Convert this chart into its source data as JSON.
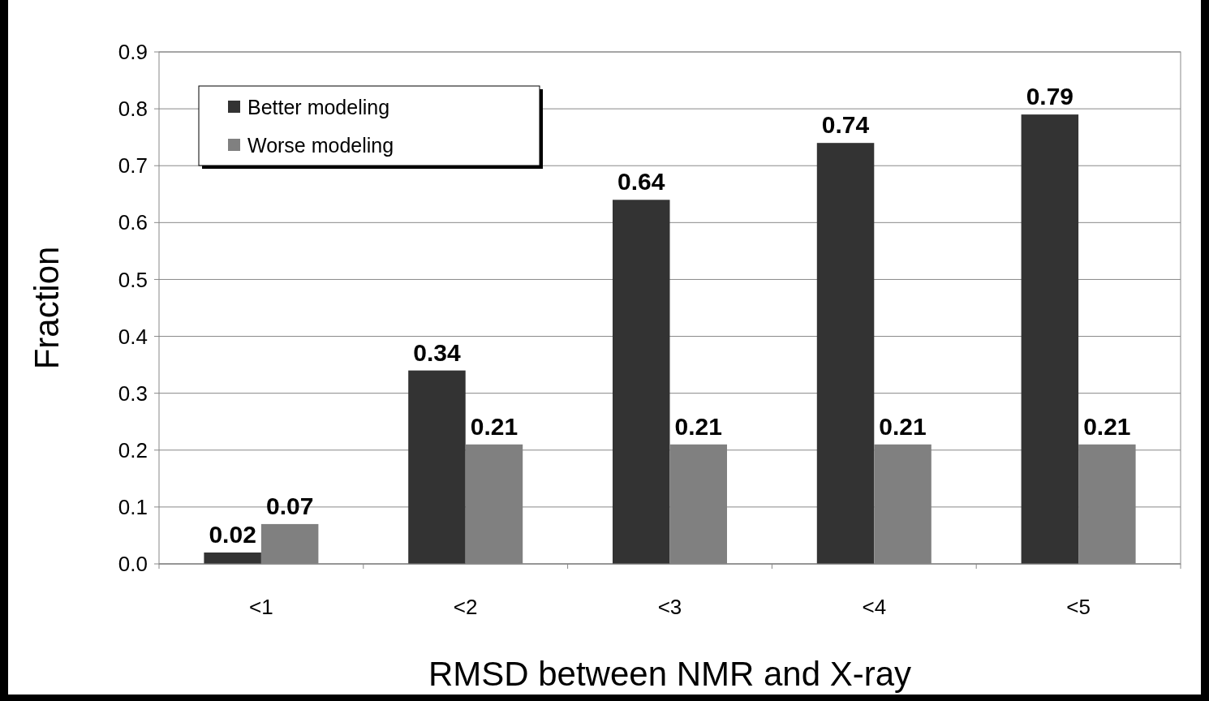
{
  "chart_data": {
    "type": "bar",
    "xlabel": "RMSD between NMR and X-ray",
    "ylabel": "Fraction",
    "categories": [
      "<1",
      "<2",
      "<3",
      "<4",
      "<5"
    ],
    "series": [
      {
        "name": "Better modeling",
        "color": "#333333",
        "values": [
          0.02,
          0.34,
          0.64,
          0.74,
          0.79
        ]
      },
      {
        "name": "Worse modeling",
        "color": "#808080",
        "values": [
          0.07,
          0.21,
          0.21,
          0.21,
          0.21
        ]
      }
    ],
    "ylim": [
      0,
      0.9
    ],
    "yticks": [
      {
        "value": 0,
        "label": "0.0"
      },
      {
        "value": 0.1,
        "label": "0.1"
      },
      {
        "value": 0.2,
        "label": "0.2"
      },
      {
        "value": 0.3,
        "label": "0.3"
      },
      {
        "value": 0.4,
        "label": "0.4"
      },
      {
        "value": 0.5,
        "label": "0.5"
      },
      {
        "value": 0.6,
        "label": "0.6"
      },
      {
        "value": 0.7,
        "label": "0.7"
      },
      {
        "value": 0.8,
        "label": "0.8"
      },
      {
        "value": 0.9,
        "label": "0.9"
      }
    ],
    "grid": "y",
    "legend": "top left",
    "data_labels": true
  }
}
